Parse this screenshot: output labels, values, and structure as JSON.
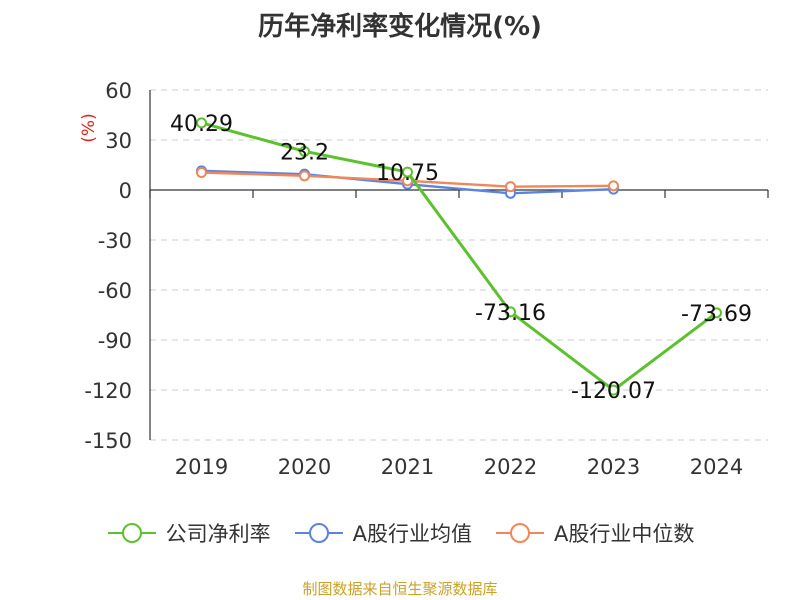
{
  "title": "历年净利率变化情况(%)",
  "source_note": "制图数据来自恒生聚源数据库",
  "colors": {
    "company": "#5dc02e",
    "a_share_avg": "#5b84e0",
    "a_share_median": "#f0875a",
    "grid": "#cccccc",
    "axis": "#333333",
    "unit": "#e02020"
  },
  "chart_data": {
    "type": "line",
    "title": "历年净利率变化情况(%)",
    "ylabel": "(%)",
    "xlabel": "",
    "x": [
      "2019",
      "2020",
      "2021",
      "2022",
      "2023",
      "2024"
    ],
    "ylim": [
      -150,
      60
    ],
    "yticks": [
      60,
      30,
      0,
      -30,
      -60,
      -90,
      -120,
      -150
    ],
    "ytick_labels": [
      "60",
      "30",
      "0",
      "-30",
      "-60",
      "-90",
      "-120",
      "-150"
    ],
    "grid": true,
    "legend_position": "bottom",
    "series": [
      {
        "name": "公司净利率",
        "color": "#5dc02e",
        "values": [
          40.29,
          23.2,
          10.75,
          -73.16,
          -120.07,
          -73.69
        ],
        "data_labels": [
          "40.29",
          "23.2",
          "10.75",
          "-73.16",
          "-120.07",
          "-73.69"
        ]
      },
      {
        "name": "A股行业均值",
        "color": "#5b84e0",
        "values": [
          11.5,
          9.5,
          3.5,
          -2.0,
          0.5,
          null
        ]
      },
      {
        "name": "A股行业中位数",
        "color": "#f0875a",
        "values": [
          10.5,
          8.5,
          5.5,
          2.0,
          2.5,
          null
        ]
      }
    ]
  }
}
